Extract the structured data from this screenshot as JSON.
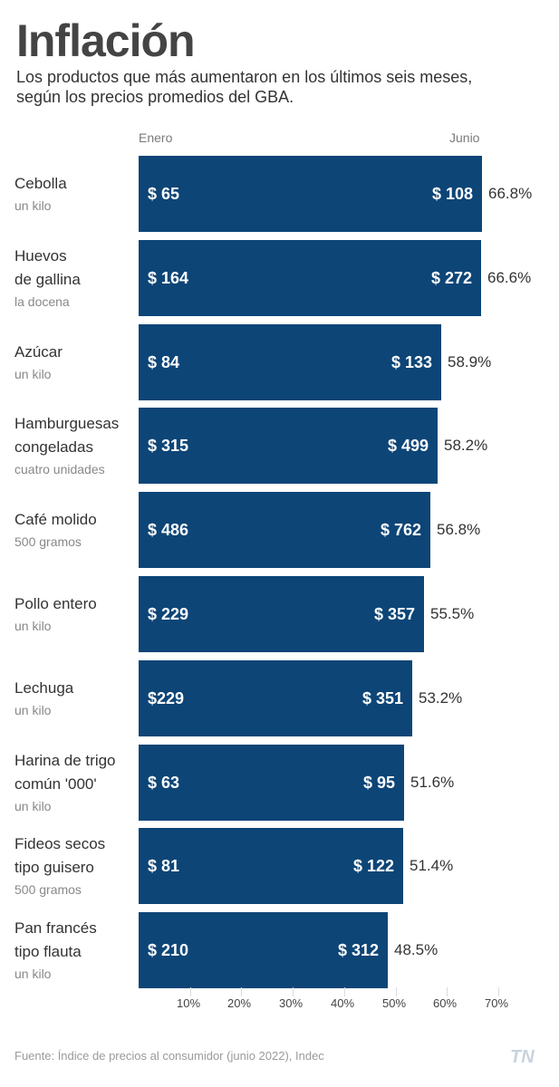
{
  "header": {
    "title": "Inflación",
    "subtitle_line1": "Los productos que más aumentaron en los últimos seis meses,",
    "subtitle_line2": "según los precios promedios del GBA."
  },
  "columns": {
    "start": "Enero",
    "end": "Junio"
  },
  "footer": {
    "source": "Fuente: Índice de precios al consumidor (junio 2022), Indec",
    "logo": "TN"
  },
  "colors": {
    "bar": "#0d4577",
    "text": "#333333",
    "muted": "#888888"
  },
  "chart_data": {
    "type": "bar",
    "orientation": "horizontal",
    "xlim": [
      0,
      70
    ],
    "xticks": [
      "10%",
      "20%",
      "30%",
      "40%",
      "50%",
      "60%",
      "70%"
    ],
    "rows": [
      {
        "name_lines": [
          "Cebolla"
        ],
        "unit": "un kilo",
        "jan": "$ 65",
        "jun": "$ 108",
        "pct_label": "66.8%",
        "value": 66.8
      },
      {
        "name_lines": [
          "Huevos",
          "de gallina"
        ],
        "unit": "la docena",
        "jan": "$ 164",
        "jun": "$ 272",
        "pct_label": "66.6%",
        "value": 66.6
      },
      {
        "name_lines": [
          "Azúcar"
        ],
        "unit": "un kilo",
        "jan": "$ 84",
        "jun": "$ 133",
        "pct_label": "58.9%",
        "value": 58.9
      },
      {
        "name_lines": [
          "Hamburguesas",
          "congeladas"
        ],
        "unit": "cuatro unidades",
        "jan": "$ 315",
        "jun": "$ 499",
        "pct_label": "58.2%",
        "value": 58.2
      },
      {
        "name_lines": [
          "Café molido"
        ],
        "unit": "500 gramos",
        "jan": "$ 486",
        "jun": "$ 762",
        "pct_label": "56.8%",
        "value": 56.8
      },
      {
        "name_lines": [
          "Pollo entero"
        ],
        "unit": "un kilo",
        "jan": "$ 229",
        "jun": "$ 357",
        "pct_label": "55.5%",
        "value": 55.5
      },
      {
        "name_lines": [
          "Lechuga"
        ],
        "unit": "un kilo",
        "jan": "$229",
        "jun": "$ 351",
        "pct_label": "53.2%",
        "value": 53.2
      },
      {
        "name_lines": [
          "Harina de trigo",
          "común '000'"
        ],
        "unit": "un kilo",
        "jan": "$ 63",
        "jun": "$ 95",
        "pct_label": "51.6%",
        "value": 51.6
      },
      {
        "name_lines": [
          "Fideos secos",
          "tipo guisero"
        ],
        "unit": "500 gramos",
        "jan": "$ 81",
        "jun": "$ 122",
        "pct_label": "51.4%",
        "value": 51.4
      },
      {
        "name_lines": [
          "Pan francés",
          "tipo flauta"
        ],
        "unit": "un kilo",
        "jan": "$ 210",
        "jun": "$ 312",
        "pct_label": "48.5%",
        "value": 48.5
      }
    ]
  }
}
